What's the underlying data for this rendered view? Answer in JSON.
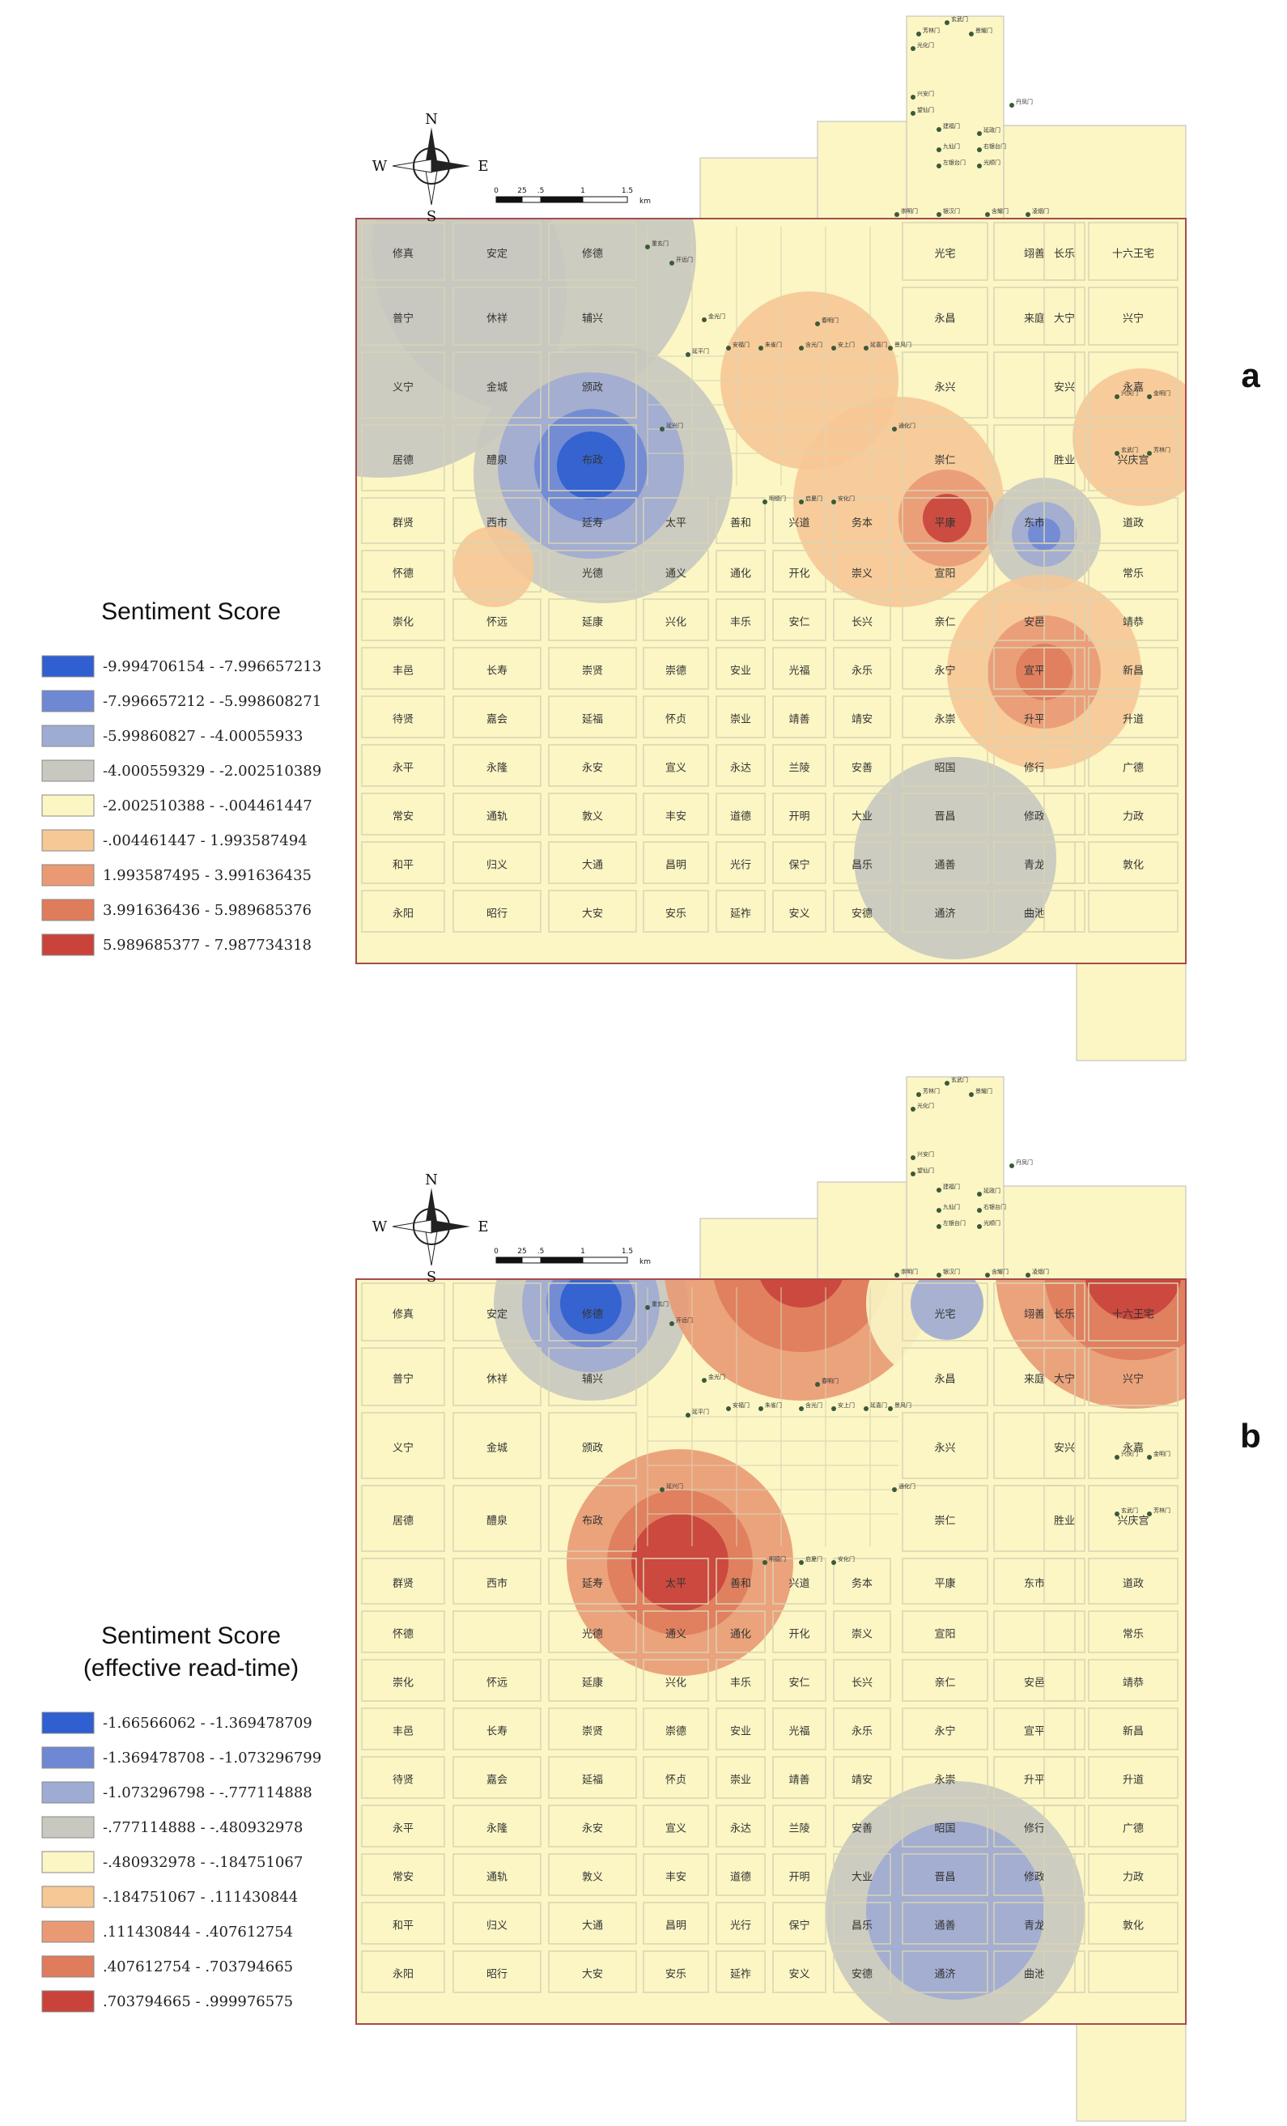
{
  "colors": {
    "background": "#fbf6c4",
    "road": "#d9d3b4",
    "boundary": "#b83a3a",
    "classes": {
      "dark_blue": "#2f5fd0",
      "mid_blue": "#6f88d3",
      "light_blue": "#9eabd2",
      "grey": "#c8c8c0",
      "cream": "#fbf6c4",
      "light_orange": "#f6c896",
      "orange": "#e99a74",
      "dark_orange": "#df7c5c",
      "red": "#c9433b"
    }
  },
  "compass": {
    "n": "N",
    "s": "S",
    "e": "E",
    "w": "W"
  },
  "scalebar": {
    "ticks": [
      "0",
      "25",
      ".5",
      "1",
      "1.5"
    ],
    "unit": "km"
  },
  "gates": [
    "玄武门",
    "芳林门",
    "景耀门",
    "光化门",
    "兴安门",
    "望仙门",
    "丹凤门",
    "建福门",
    "延政门",
    "九仙门",
    "右银台门",
    "左银台门",
    "光顺门",
    "崇明门",
    "银汉门",
    "含耀门",
    "凌烟门",
    "重玄门",
    "开远门",
    "金光门",
    "延平门",
    "安福门",
    "朱雀门",
    "含光门",
    "安上门",
    "延喜门",
    "景风门",
    "春明门",
    "通化门",
    "延兴门",
    "明德门",
    "启夏门",
    "安化门",
    "兴庆门",
    "金明门"
  ],
  "wards": [
    [
      "修真",
      "安定",
      "修德",
      "",
      "",
      "",
      "",
      "",
      "光宅",
      "翊善",
      "长乐",
      "十六王宅"
    ],
    [
      "普宁",
      "休祥",
      "辅兴",
      "",
      "",
      "",
      "",
      "",
      "永昌",
      "来庭",
      "大宁",
      "兴宁"
    ],
    [
      "义宁",
      "金城",
      "颁政",
      "",
      "",
      "",
      "",
      "",
      "永兴",
      "",
      "安兴",
      "永嘉"
    ],
    [
      "居德",
      "醴泉",
      "布政",
      "",
      "",
      "",
      "",
      "",
      "崇仁",
      "",
      "胜业",
      "兴庆宫"
    ],
    [
      "群贤",
      "西市",
      "延寿",
      "太平",
      "善和",
      "兴道",
      "务本",
      "",
      "平康",
      "东市",
      "",
      "道政"
    ],
    [
      "怀德",
      "",
      "光德",
      "通义",
      "通化",
      "开化",
      "崇义",
      "",
      "宣阳",
      "",
      "",
      "常乐"
    ],
    [
      "崇化",
      "怀远",
      "延康",
      "兴化",
      "丰乐",
      "安仁",
      "长兴",
      "",
      "亲仁",
      "安邑",
      "",
      "靖恭"
    ],
    [
      "丰邑",
      "长寿",
      "崇贤",
      "崇德",
      "安业",
      "光福",
      "永乐",
      "",
      "永宁",
      "宣平",
      "",
      "新昌"
    ],
    [
      "待贤",
      "嘉会",
      "延福",
      "怀贞",
      "崇业",
      "靖善",
      "靖安",
      "",
      "永崇",
      "升平",
      "",
      "升道"
    ],
    [
      "永平",
      "永隆",
      "永安",
      "宣义",
      "永达",
      "兰陵",
      "安善",
      "",
      "昭国",
      "修行",
      "",
      "广德"
    ],
    [
      "常安",
      "通轨",
      "敦义",
      "丰安",
      "道德",
      "开明",
      "大业",
      "",
      "晋昌",
      "修政",
      "",
      "力政"
    ],
    [
      "和平",
      "归义",
      "大通",
      "昌明",
      "光行",
      "保宁",
      "昌乐",
      "",
      "通善",
      "青龙",
      "",
      "敦化"
    ],
    [
      "永阳",
      "昭行",
      "大安",
      "安乐",
      "延祚",
      "安义",
      "安德",
      "",
      "通济",
      "曲池",
      "",
      ""
    ]
  ],
  "market_cell": "西市",
  "east_market_cell": "东市",
  "panels": [
    {
      "id": "a",
      "label": "a",
      "legend_title": [
        "Sentiment Score"
      ],
      "legend": [
        {
          "range": "-9.994706154 - -7.996657213",
          "color": "#2f5fd0"
        },
        {
          "range": "-7.996657212 - -5.998608271",
          "color": "#6f88d3"
        },
        {
          "range": "-5.99860827 - -4.00055933",
          "color": "#9eabd2"
        },
        {
          "range": "-4.000559329 - -2.002510389",
          "color": "#c8c8c0"
        },
        {
          "range": "-2.002510388 - -.004461447",
          "color": "#fbf6c4"
        },
        {
          "range": "-.004461447 - 1.993587494",
          "color": "#f6c896"
        },
        {
          "range": "1.993587495 - 3.991636435",
          "color": "#e99a74"
        },
        {
          "range": "3.991636436 - 5.989685376",
          "color": "#df7c5c"
        },
        {
          "range": "5.989685377 - 7.987734318",
          "color": "#c9433b"
        }
      ]
    },
    {
      "id": "b",
      "label": "b",
      "legend_title": [
        "Sentiment Score",
        "(effective read-time)"
      ],
      "legend": [
        {
          "range": "-1.66566062 - -1.369478709",
          "color": "#2f5fd0"
        },
        {
          "range": "-1.369478708 - -1.073296799",
          "color": "#6f88d3"
        },
        {
          "range": "-1.073296798 - -.777114888",
          "color": "#9eabd2"
        },
        {
          "range": "-.777114888 - -.480932978",
          "color": "#c8c8c0"
        },
        {
          "range": "-.480932978 - -.184751067",
          "color": "#fbf6c4"
        },
        {
          "range": "-.184751067 - .111430844",
          "color": "#f6c896"
        },
        {
          "range": ".111430844 - .407612754",
          "color": "#e99a74"
        },
        {
          "range": ".407612754 - .703794665",
          "color": "#df7c5c"
        },
        {
          "range": ".703794665 - .999976575",
          "color": "#c9433b"
        }
      ]
    }
  ]
}
